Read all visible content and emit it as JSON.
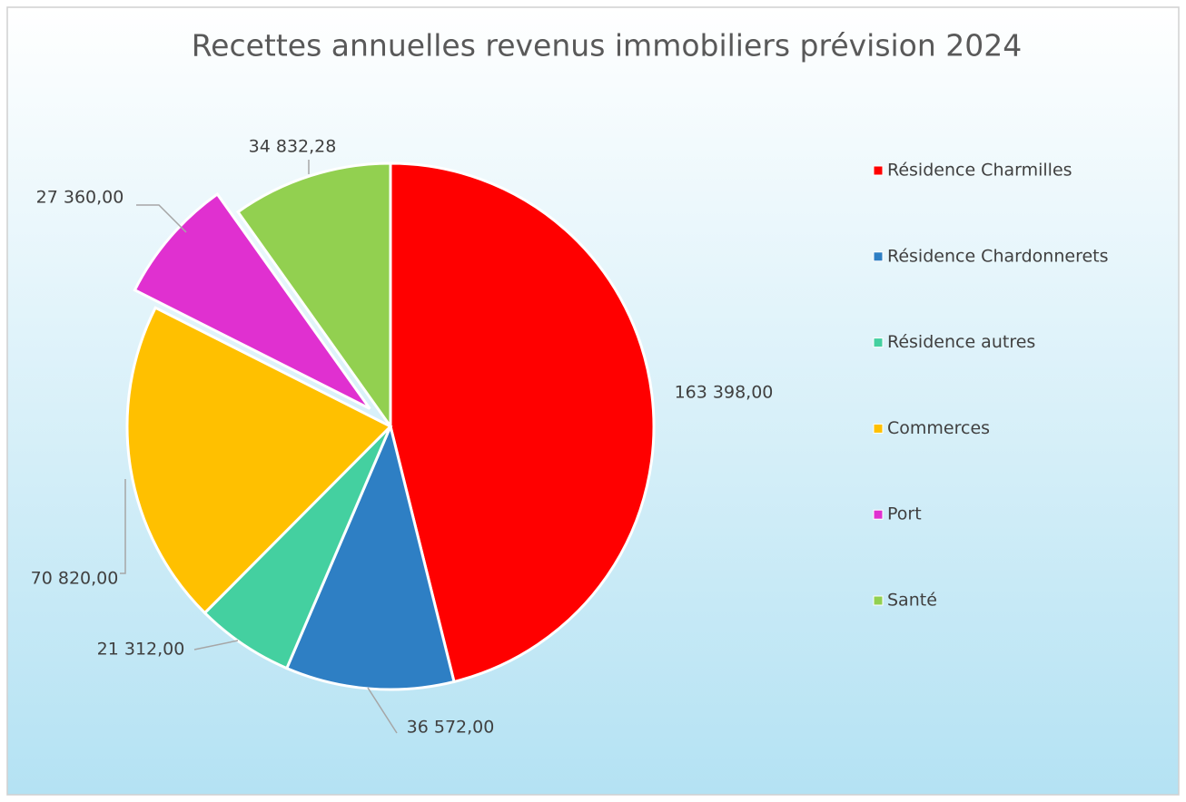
{
  "chart_data": {
    "type": "pie",
    "title": "Recettes annuelles revenus immobiliers prévision 2024",
    "categories": [
      "Résidence Charmilles",
      "Résidence Chardonnerets",
      "Résidence autres",
      "Commerces",
      "Port",
      "Santé"
    ],
    "values": [
      163398,
      36572,
      21312,
      70820,
      27360,
      34832.28
    ],
    "value_labels": [
      "163 398,00",
      "36 572,00",
      "21 312,00",
      "70 820,00",
      "27 360,00",
      "34 832,28"
    ],
    "colors": [
      "#ff0000",
      "#2e7fc4",
      "#44d0a0",
      "#ffc000",
      "#e030d0",
      "#92d050"
    ],
    "exploded": [
      "Port"
    ],
    "legend": "right"
  }
}
